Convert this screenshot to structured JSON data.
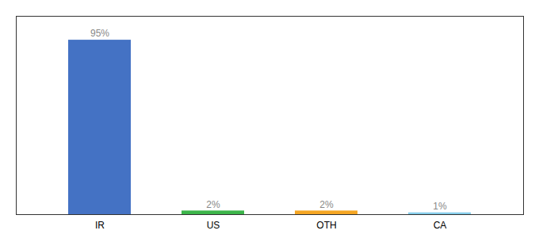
{
  "chart_data": {
    "type": "bar",
    "categories": [
      "IR",
      "US",
      "OTH",
      "CA"
    ],
    "values": [
      95,
      2,
      2,
      1
    ],
    "value_labels": [
      "95%",
      "2%",
      "2%",
      "1%"
    ],
    "data_labels": true,
    "colors": [
      "#4472C4",
      "#3CB54A",
      "#F5A623",
      "#87CEEB"
    ],
    "ylim": [
      0,
      108
    ],
    "tick_labels": "x"
  }
}
